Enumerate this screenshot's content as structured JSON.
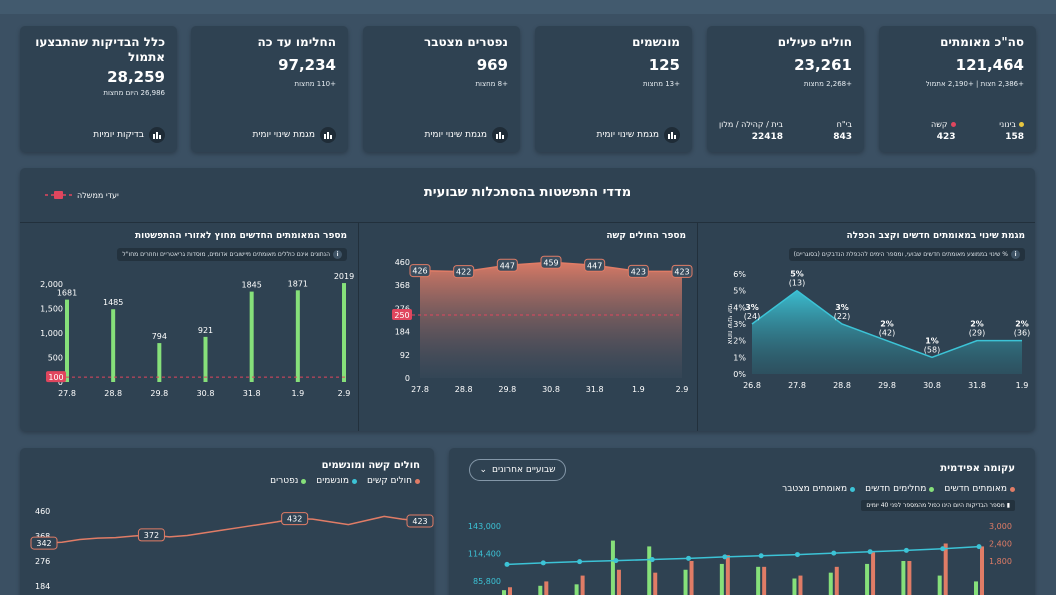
{
  "kpis": [
    {
      "title": "סה\"כ מאומתים",
      "value": "121,464",
      "sub": "+2,386 חצות | +2,190 אתמול",
      "mild_label": "בינוני",
      "mild_value": "158",
      "severe_label": "קשה",
      "severe_value": "423"
    },
    {
      "title": "חולים פעילים",
      "value": "23,261",
      "sub": "+2,268 מחצות",
      "hosp_label": "בי\"ח",
      "hosp_value": "843",
      "home_label": "בית / קהילה / מלון",
      "home_value": "22418"
    },
    {
      "title": "מונשמים",
      "value": "125",
      "sub": "+13 מחצות",
      "foot": "מגמת שינוי יומית"
    },
    {
      "title": "נפטרים מצטבר",
      "value": "969",
      "sub": "+8 מחצות",
      "foot": "מגמת שינוי יומית"
    },
    {
      "title": "החלימו עד כה",
      "value": "97,234",
      "sub": "+110 מחצות",
      "foot": "מגמת שינוי יומית"
    },
    {
      "title": "כלל הבדיקות שהתבצעו אתמול",
      "value": "28,259",
      "sub": "26,986 היום מחצות",
      "foot": "בדיקות יומיות"
    }
  ],
  "indicators": {
    "title": "מדדי התפשטות בהסתכלות שבועית",
    "target_legend": "יעדי ממשלה"
  },
  "colors": {
    "teal": "#3cc3d6",
    "green": "#86e07a",
    "salmon": "#e07c66",
    "red": "#e0465e",
    "bg": "#3b5063",
    "card": "#2f4252"
  },
  "chart_data": [
    {
      "type": "area",
      "title": "מגמת שינוי במאומתים חדשים וקצב הכפלה",
      "note": "% שינוי בממוצע מאומתים חדשים שבועי, ומספר הימים להכפלת הנדבקים (בסוגריים)",
      "ylabel": "אחוז שינוי יומי",
      "x": [
        "26.8",
        "27.8",
        "28.8",
        "29.8",
        "30.8",
        "31.8",
        "1.9"
      ],
      "values": [
        3,
        5,
        3,
        2,
        1,
        2,
        2
      ],
      "point_labels": [
        "3%",
        "5%",
        "3%",
        "2%",
        "1%",
        "2%",
        "2%"
      ],
      "doubling": [
        "(24)",
        "(13)",
        "(22)",
        "(42)",
        "(58)",
        "(29)",
        "(36)"
      ],
      "yticks": [
        "0%",
        "1%",
        "2%",
        "3%",
        "4%",
        "5%",
        "6%"
      ],
      "ylim": [
        0,
        6
      ]
    },
    {
      "type": "area",
      "title": "מספר החולים קשה",
      "x": [
        "27.8",
        "28.8",
        "29.8",
        "30.8",
        "31.8",
        "1.9",
        "2.9"
      ],
      "values": [
        426,
        422,
        447,
        459,
        447,
        423,
        423
      ],
      "yticks": [
        "0",
        "92",
        "184",
        "276",
        "368",
        "460"
      ],
      "ylim": [
        0,
        460
      ],
      "target": 250,
      "target_label": "250"
    },
    {
      "type": "bar",
      "title": "מספר המאומתים החדשים מחוץ לאזורי ההתפשטות",
      "note": "הנתונים אינם כוללים מאומתים מיישובים אדומים, מוסדות גריאטריים וחוזרים מחו\"ל",
      "categories": [
        "27.8",
        "28.8",
        "29.8",
        "30.8",
        "31.8",
        "1.9",
        "2.9"
      ],
      "values": [
        1681,
        1485,
        794,
        921,
        1845,
        1871,
        2019
      ],
      "yticks": [
        "0",
        "500",
        "1,000",
        "1,500",
        "2,000"
      ],
      "ylim": [
        0,
        2000
      ],
      "target": 100,
      "target_label": "100"
    },
    {
      "type": "line",
      "title": "חולים קשה ומונשמים",
      "legend": [
        "חולים קשים",
        "מונשמים",
        "נפטרים"
      ],
      "yticks": [
        "184",
        "276",
        "368",
        "460"
      ],
      "ylim": [
        184,
        460
      ],
      "series": [
        {
          "name": "חולים קשים",
          "values": [
            342,
            345,
            355,
            360,
            362,
            368,
            372,
            365,
            370,
            380,
            390,
            400,
            410,
            420,
            432,
            430,
            420,
            410,
            425,
            440,
            430,
            423
          ]
        }
      ],
      "point_labels": [
        {
          "index": 0,
          "label": "342"
        },
        {
          "index": 6,
          "label": "372"
        },
        {
          "index": 14,
          "label": "432"
        },
        {
          "index": 21,
          "label": "423"
        }
      ]
    },
    {
      "type": "bar",
      "title": "עקומה אפידמית",
      "legend": [
        "מאומתים חדשים",
        "מחלימים חדשים",
        "מאומתים מצטבר"
      ],
      "dropdown": "שבועיים אחרונים",
      "note": "מספר הבדיקות היום הינו כפול מהמספר לפני 40 יומים",
      "yticks_left": [
        "85,800",
        "114,400",
        "143,000"
      ],
      "yticks_right": [
        "1,800",
        "2,400",
        "3,000"
      ],
      "cumulative": [
        103000,
        104500,
        105800,
        106900,
        108000,
        109300,
        110800,
        112000,
        113200,
        114700,
        116200,
        117600,
        119300,
        121464
      ],
      "new_cases": [
        900,
        1100,
        1300,
        1500,
        1400,
        1800,
        2000,
        1600,
        1300,
        1600,
        2100,
        1800,
        2400,
        2300
      ],
      "recovered": [
        800,
        950,
        1000,
        2500,
        2300,
        1500,
        1700,
        1600,
        1200,
        1400,
        1700,
        1800,
        1300,
        1100
      ]
    }
  ]
}
